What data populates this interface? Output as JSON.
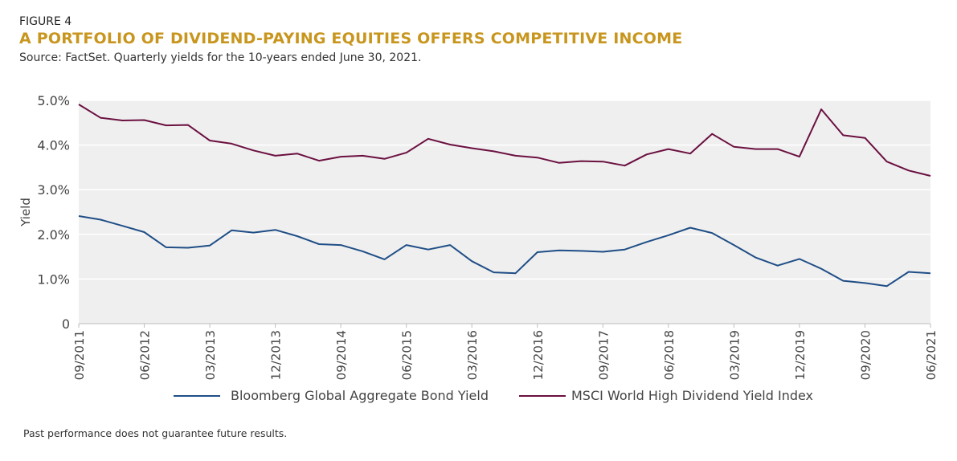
{
  "figure_label": "FIGURE 4",
  "title": "A PORTFOLIO OF DIVIDEND-PAYING EQUITIES OFFERS COMPETITIVE INCOME",
  "subtitle": "Source: FactSet. Quarterly yields for the 10-years ended June 30, 2021.",
  "footnote": "Past performance does not guarantee future results.",
  "colors": {
    "title": "#c8961e",
    "bond": "#1f4e86",
    "msci": "#6b1040",
    "plot_bg": "#efefef",
    "grid": "#ffffff"
  },
  "chart_data": {
    "type": "line",
    "ylabel": "Yield",
    "xlabel": "",
    "ylim": [
      0,
      5
    ],
    "y_ticks": [
      {
        "value": 5,
        "label": "5.0%"
      },
      {
        "value": 4,
        "label": "4.0%"
      },
      {
        "value": 3,
        "label": "3.0%"
      },
      {
        "value": 2,
        "label": "2.0%"
      },
      {
        "value": 1,
        "label": "1.0%"
      },
      {
        "value": 0,
        "label": "0"
      }
    ],
    "grid": true,
    "legend_position": "bottom",
    "x": [
      "09/2011",
      "12/2011",
      "03/2012",
      "06/2012",
      "09/2012",
      "12/2012",
      "03/2013",
      "06/2013",
      "09/2013",
      "12/2013",
      "03/2014",
      "06/2014",
      "09/2014",
      "12/2014",
      "03/2015",
      "06/2015",
      "09/2015",
      "12/2015",
      "03/2016",
      "06/2016",
      "09/2016",
      "12/2016",
      "03/2017",
      "06/2017",
      "09/2017",
      "12/2017",
      "03/2018",
      "06/2018",
      "09/2018",
      "12/2018",
      "03/2019",
      "06/2019",
      "09/2019",
      "12/2019",
      "03/2020",
      "06/2020",
      "09/2020",
      "12/2020",
      "03/2021",
      "06/2021"
    ],
    "x_tick_labels": [
      "09/2011",
      "06/2012",
      "03/2013",
      "12/2013",
      "09/2014",
      "06/2015",
      "03/2016",
      "12/2016",
      "09/2017",
      "06/2018",
      "03/2019",
      "12/2019",
      "09/2020",
      "06/2021"
    ],
    "series": [
      {
        "name": "Bloomberg Global Aggregate Bond Yield",
        "color": "#1f4e86",
        "values": [
          2.41,
          2.33,
          2.19,
          2.05,
          1.71,
          1.7,
          1.75,
          2.09,
          2.04,
          2.1,
          1.96,
          1.78,
          1.76,
          1.62,
          1.44,
          1.76,
          1.66,
          1.76,
          1.4,
          1.15,
          1.13,
          1.6,
          1.64,
          1.63,
          1.61,
          1.66,
          1.83,
          1.98,
          2.15,
          2.03,
          1.76,
          1.48,
          1.3,
          1.45,
          1.23,
          0.96,
          0.91,
          0.84,
          1.16,
          1.13
        ]
      },
      {
        "name": "MSCI World High Dividend Yield Index",
        "color": "#6b1040",
        "values": [
          4.91,
          4.61,
          4.55,
          4.56,
          4.44,
          4.45,
          4.1,
          4.03,
          3.88,
          3.76,
          3.81,
          3.65,
          3.74,
          3.76,
          3.69,
          3.83,
          4.14,
          4.01,
          3.93,
          3.86,
          3.76,
          3.72,
          3.6,
          3.64,
          3.63,
          3.54,
          3.79,
          3.91,
          3.81,
          4.25,
          3.96,
          3.91,
          3.91,
          3.74,
          4.8,
          4.22,
          4.16,
          3.63,
          3.43,
          3.31
        ]
      }
    ]
  }
}
